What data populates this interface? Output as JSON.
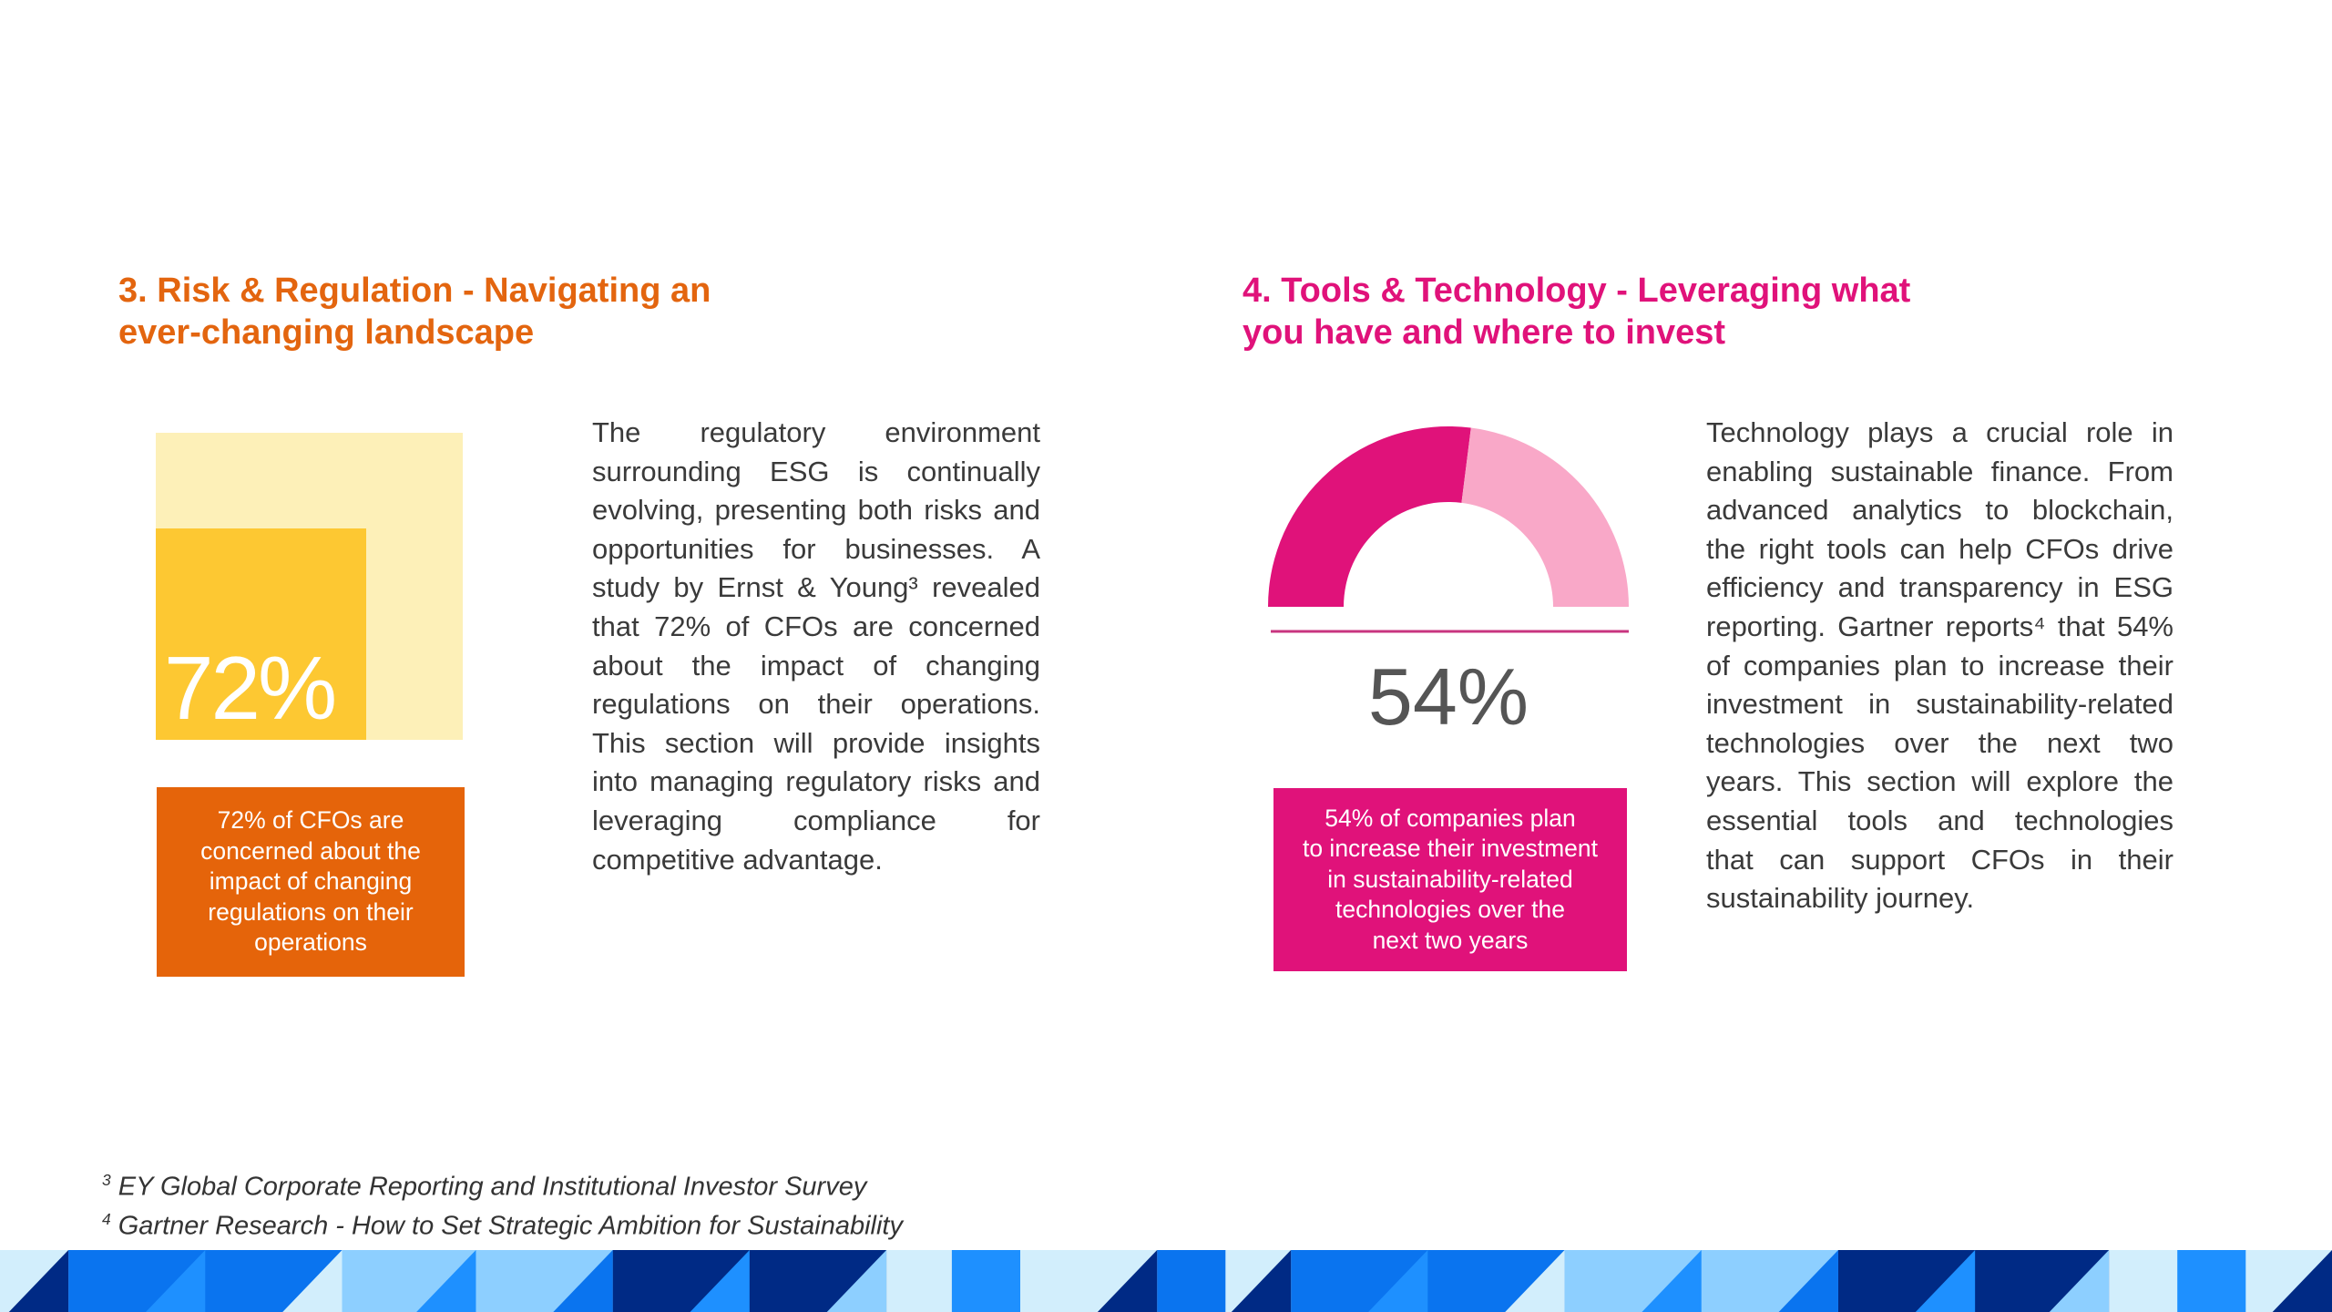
{
  "colors": {
    "orange": "#e3650f",
    "magenta": "#e0127a",
    "light_pink": "#f9a8c8",
    "yellow": "#fdc832",
    "light_yellow": "#fdf0b8",
    "text": "#3a3a3a"
  },
  "section3": {
    "title_lines": [
      "3. Risk & Regulation - Navigating an",
      "ever-changing landscape"
    ],
    "stat": {
      "value": 72,
      "label": "72%"
    },
    "callout_lines": [
      "72% of CFOs are",
      "concerned about the",
      "impact of changing",
      "regulations on their",
      "operations"
    ],
    "paragraph_lines": [
      "The regulatory environment",
      "surrounding ESG is continually",
      "evolving, presenting both risks and",
      "opportunities for businesses. A",
      "study by Ernst & Young³ revealed",
      "that 72% of CFOs are concerned",
      "about the impact of changing",
      "regulations on their operations.",
      "This section will provide insights",
      "into managing regulatory risks and",
      "leveraging compliance for",
      "competitive advantage."
    ]
  },
  "section4": {
    "title_lines": [
      "4. Tools & Technology - Leveraging what",
      "you have and where to invest"
    ],
    "stat": {
      "value": 54,
      "label": "54%"
    },
    "callout_lines": [
      "54% of companies plan",
      "to increase their investment",
      "in sustainability-related",
      "technologies over the",
      "next two years"
    ],
    "paragraph_lines": [
      "Technology plays a crucial role in",
      "enabling sustainable finance. From",
      "advanced analytics to blockchain,",
      "the right tools can help CFOs drive",
      "efficiency and transparency in ESG",
      "reporting. Gartner reports⁴ that 54%",
      "of companies plan to increase their",
      "investment in sustainability-related",
      "technologies over the next two",
      "years. This section will explore the",
      "essential tools and technologies",
      "that can support CFOs in their",
      "sustainability journey."
    ]
  },
  "footnotes": [
    {
      "mark": "3",
      "text": "EY Global Corporate Reporting and Institutional Investor Survey"
    },
    {
      "mark": "4",
      "text": "Gartner Research - How to Set Strategic Ambition for Sustainability"
    }
  ]
}
